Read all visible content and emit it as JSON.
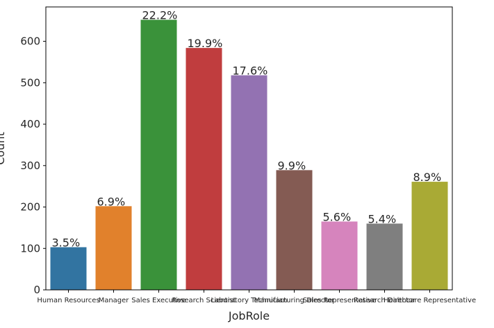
{
  "chart_data": {
    "type": "bar",
    "categories": [
      "Human Resources",
      "Manager",
      "Sales Executive",
      "Research Scientist",
      "Laboratory Technician",
      "Manufacturing Director",
      "Sales Representative",
      "Research Director",
      "Healthcare Representative"
    ],
    "values": [
      103,
      202,
      652,
      584,
      518,
      289,
      165,
      160,
      261
    ],
    "data_labels": [
      "3.5%",
      "6.9%",
      "22.2%",
      "19.9%",
      "17.6%",
      "9.9%",
      "5.6%",
      "5.4%",
      "8.9%"
    ],
    "colors": [
      "#3274a1",
      "#e1812c",
      "#3a923a",
      "#c03d3e",
      "#9372b2",
      "#845b53",
      "#d684bd",
      "#7f7f7f",
      "#a9aa35"
    ],
    "xlabel": "JobRole",
    "ylabel": "Count",
    "ylim": [
      0,
      683
    ],
    "yticks": [
      0,
      100,
      200,
      300,
      400,
      500,
      600
    ],
    "grid": false,
    "legend": "none"
  }
}
